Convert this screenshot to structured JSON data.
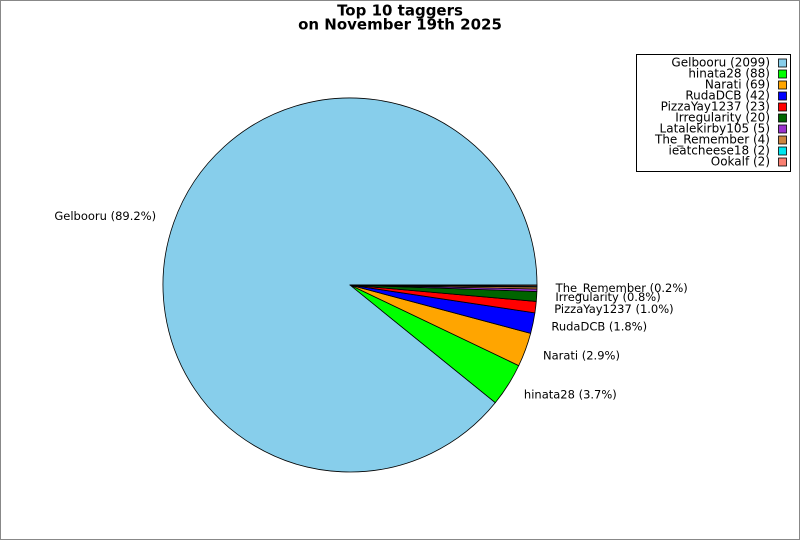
{
  "chart_data": {
    "type": "pie",
    "title": "Top 10 taggers",
    "subtitle": "on November 19th 2025",
    "categories": [
      "Gelbooru (2099)",
      "hinata28 (88)",
      "Narati (69)",
      "RudaDCB (42)",
      "PizzaYay1237 (23)",
      "Irregularity (20)",
      "Latalekirby105 (5)",
      "The_Remember (4)",
      "ieatcheese18 (2)",
      "Ookalf (2)"
    ],
    "values": [
      2099,
      88,
      69,
      42,
      23,
      20,
      5,
      4,
      2,
      2
    ],
    "slice_labels": [
      "Gelbooru (89.2%)",
      "hinata28 (3.7%)",
      "Narati (2.9%)",
      "RudaDCB (1.8%)",
      "PizzaYay1237 (1.0%)",
      "Irregularity (0.8%)",
      null,
      "The_Remember (0.2%)",
      null,
      null
    ],
    "colors": [
      "#87ceeb",
      "#00ff00",
      "#ffa500",
      "#0000ff",
      "#ff0000",
      "#006400",
      "#9932cc",
      "#cd853f",
      "#00e5ee",
      "#fa8072"
    ],
    "legend": "upper right"
  }
}
